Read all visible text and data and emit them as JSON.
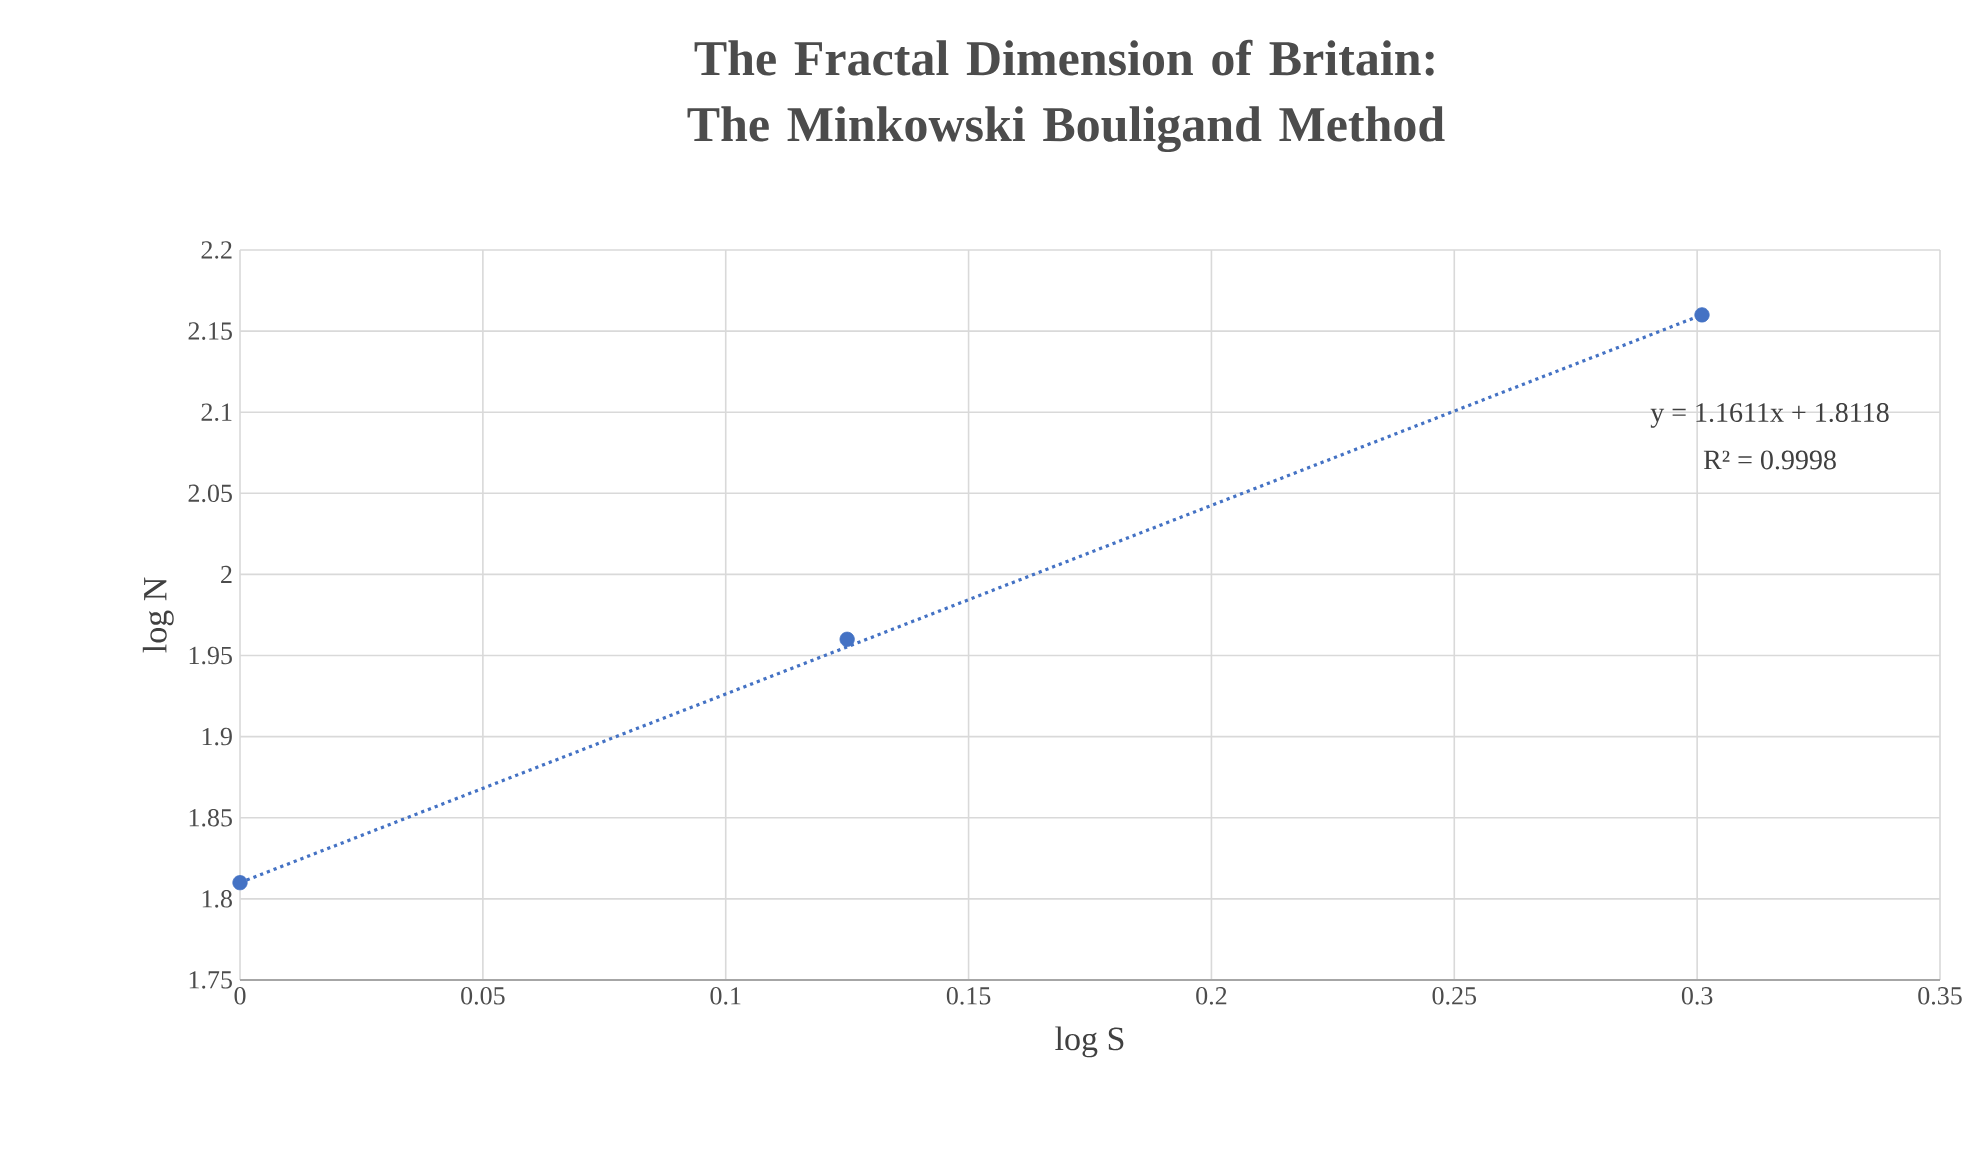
{
  "chart_data": {
    "type": "scatter",
    "title": "The Fractal Dimension of Britain: The Minkowski Bouligand Method",
    "xlabel": "log S",
    "ylabel": "log N",
    "series": [
      {
        "x": [
          0,
          0.125,
          0.301
        ],
        "values": [
          1.81,
          1.96,
          2.16
        ],
        "color": "#4472c4",
        "marker": "circle"
      },
      {
        "type": "line",
        "x": [
          0,
          0.301
        ],
        "values": [
          1.81,
          2.16
        ],
        "color": "#4472c4",
        "line_style": "dotted"
      }
    ],
    "annotations": [
      "y = 1.1611x + 1.8118",
      "R² = 0.9998"
    ],
    "xlim": [
      0,
      0.35
    ],
    "xticks": [
      0,
      0.05,
      0.1,
      0.15,
      0.2,
      0.25,
      0.3,
      0.35
    ],
    "ylim": [
      1.75,
      2.2
    ],
    "yticks": [
      1.75,
      1.8,
      1.85,
      1.9,
      1.95,
      2,
      2.05,
      2.1,
      2.15,
      2.2
    ],
    "grid": true
  }
}
